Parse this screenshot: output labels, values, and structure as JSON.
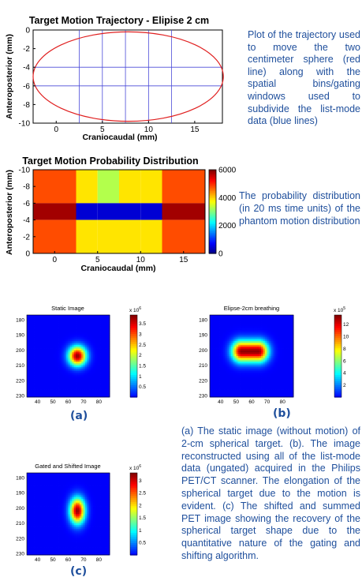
{
  "chart_data": [
    {
      "type": "line",
      "title": "Target Motion Trajectory  - Elipise 2 cm",
      "xlabel": "Craniocaudal (mm)",
      "ylabel": "Anteroposterior (mm)",
      "xlim": [
        -2.5,
        18
      ],
      "ylim": [
        -10,
        0
      ],
      "y_reversed": false,
      "xticks": [
        "0",
        "5",
        "10",
        "15"
      ],
      "xtick_values": [
        0,
        5,
        10,
        15
      ],
      "yticks": [
        "0",
        "-2",
        "-4",
        "-6",
        "-8",
        "-10"
      ],
      "ytick_values": [
        0,
        -2,
        -4,
        -6,
        -8,
        -10
      ],
      "series": [
        {
          "color": "#e02020",
          "shape": "ellipse",
          "center": [
            7.8,
            -5.0
          ],
          "radius_x": 10.3,
          "radius_y": 4.8
        }
      ],
      "gating_lines": {
        "color": "#4a4ad8",
        "vertical_x": [
          2.5,
          5.0,
          7.5,
          10.0,
          12.5
        ],
        "horizontal_y": [
          -4.0,
          -6.0
        ]
      },
      "grid": false
    },
    {
      "type": "heatmap",
      "title": "Target Motion Probability Distribution",
      "xlabel": "Craniocaudal (mm)",
      "ylabel": "Anteroposterior (mm)",
      "xlim": [
        -2.5,
        17.5
      ],
      "ylim": [
        -10,
        0
      ],
      "xticks": [
        "0",
        "5",
        "10",
        "15"
      ],
      "xtick_values": [
        0,
        5,
        10,
        15
      ],
      "yticks": [
        "-10",
        "-8",
        "-6",
        "-4",
        "-2",
        "0"
      ],
      "ytick_values": [
        -10,
        -8,
        -6,
        -4,
        -2,
        0
      ],
      "x_edges": [
        -2.5,
        2.5,
        5,
        7.5,
        10,
        12.5,
        17.5
      ],
      "y_edges": [
        -10,
        -6,
        -4,
        0
      ],
      "values": [
        [
          4800,
          3900,
          3300,
          3900,
          3900,
          4800
        ],
        [
          5800,
          500,
          500,
          500,
          500,
          5800
        ],
        [
          4800,
          3900,
          3900,
          3900,
          3900,
          4800
        ]
      ],
      "colorbar": {
        "min": 0,
        "max": 6000,
        "ticks": [
          "0",
          "2000",
          "4000",
          "6000"
        ],
        "tick_values": [
          0,
          2000,
          4000,
          6000
        ]
      }
    },
    {
      "type": "heatmap",
      "title": "Static Image",
      "xticks": [
        "40",
        "50",
        "60",
        "70",
        "80"
      ],
      "xtick_values": [
        40,
        50,
        60,
        70,
        80
      ],
      "xlim": [
        33,
        87
      ],
      "yticks": [
        "180",
        "190",
        "200",
        "210",
        "220",
        "230"
      ],
      "ytick_values": [
        180,
        190,
        200,
        210,
        220,
        230
      ],
      "ylim": [
        177,
        231
      ],
      "blob": {
        "cx": 66,
        "cy": 204,
        "sx": 4.0,
        "sy": 4.4,
        "elong": 0
      },
      "colorbar": {
        "exponent": "x 10",
        "exponent_power": "6",
        "min": 0,
        "max": 3.9,
        "ticks": [
          "0.5",
          "1",
          "1.5",
          "2",
          "2.5",
          "3",
          "3.5"
        ],
        "tick_values": [
          0.5,
          1,
          1.5,
          2,
          2.5,
          3,
          3.5
        ]
      }
    },
    {
      "type": "heatmap",
      "title": "Elipse-2cm breathing",
      "xticks": [
        "40",
        "50",
        "60",
        "70",
        "80"
      ],
      "xtick_values": [
        40,
        50,
        60,
        70,
        80
      ],
      "xlim": [
        33,
        87
      ],
      "yticks": [
        "180",
        "190",
        "200",
        "210",
        "220",
        "230"
      ],
      "ytick_values": [
        180,
        190,
        200,
        210,
        220,
        230
      ],
      "ylim": [
        177,
        231
      ],
      "blob": {
        "cx": 59,
        "cy": 201,
        "sx": 4.3,
        "sy": 4.8,
        "elong": 11
      },
      "colorbar": {
        "exponent": "x 10",
        "exponent_power": "5",
        "min": 0,
        "max": 13.5,
        "ticks": [
          "2",
          "4",
          "6",
          "8",
          "10",
          "12"
        ],
        "tick_values": [
          2,
          4,
          6,
          8,
          10,
          12
        ]
      }
    },
    {
      "type": "heatmap",
      "title": "Gated and Shifted Image",
      "xticks": [
        "40",
        "50",
        "60",
        "70",
        "80"
      ],
      "xtick_values": [
        40,
        50,
        60,
        70,
        80
      ],
      "xlim": [
        33,
        87
      ],
      "yticks": [
        "180",
        "190",
        "200",
        "210",
        "220",
        "230"
      ],
      "ytick_values": [
        180,
        190,
        200,
        210,
        220,
        230
      ],
      "ylim": [
        177,
        231
      ],
      "blob": {
        "cx": 66,
        "cy": 202,
        "sx": 3.4,
        "sy": 5.8,
        "elong": 0
      },
      "colorbar": {
        "exponent": "x 10",
        "exponent_power": "6",
        "min": 0,
        "max": 3.3,
        "ticks": [
          "0.5",
          "1",
          "1.5",
          "2",
          "2.5",
          "3"
        ],
        "tick_values": [
          0.5,
          1,
          1.5,
          2,
          2.5,
          3
        ]
      }
    }
  ],
  "captions": {
    "trajectory": "Plot of the trajectory used to move the two centimeter sphere (red line) along with the spatial bins/gating windows used to subdivide the list-mode data (blue lines)",
    "probability": "The probability distribution (in 20 ms time units) of the phantom motion distribution",
    "images": "(a) The static image (without motion) of 2-cm spherical target. (b). The image reconstructed using all of the list-mode data (ungated) acquired in the Philips PET/CT scanner. The elongation of the spherical target due to the motion is evident.  (c) The shifted and summed PET image showing the recovery of the spherical target shape due to the quantitative nature of the gating and shifting algorithm."
  },
  "panel_labels": {
    "a": "(a)",
    "b": "(b)",
    "c": "(c)"
  }
}
